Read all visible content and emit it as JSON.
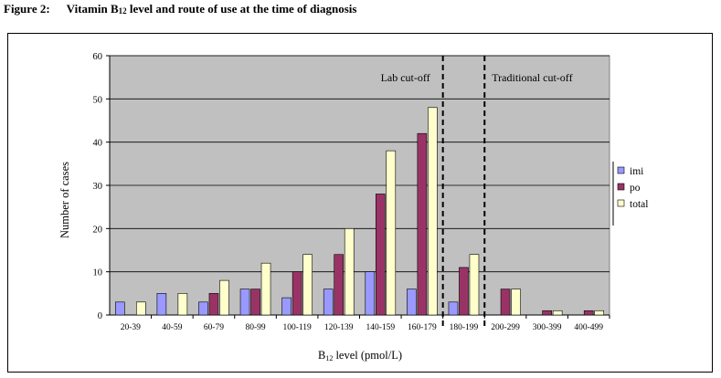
{
  "caption": {
    "label": "Figure 2:",
    "title_main": "Vitamin B",
    "title_sub": "12",
    "title_rest": " level and route of use at the time of diagnosis"
  },
  "chart_data": {
    "type": "bar",
    "categories": [
      "20-39",
      "40-59",
      "60-79",
      "80-99",
      "100-119",
      "120-139",
      "140-159",
      "160-179",
      "180-199",
      "200-299",
      "300-399",
      "400-499"
    ],
    "series": [
      {
        "name": "imi",
        "color": "#9999ff",
        "values": [
          3,
          5,
          3,
          6,
          4,
          6,
          10,
          6,
          3,
          0,
          0,
          0
        ]
      },
      {
        "name": "po",
        "color": "#993366",
        "values": [
          0,
          0,
          5,
          6,
          10,
          14,
          28,
          42,
          11,
          6,
          1,
          1
        ]
      },
      {
        "name": "total",
        "color": "#ffffcc",
        "values": [
          3,
          5,
          8,
          12,
          14,
          20,
          38,
          48,
          14,
          6,
          1,
          1
        ]
      }
    ],
    "ylim": [
      0,
      60
    ],
    "yticks": [
      0,
      10,
      20,
      30,
      40,
      50,
      60
    ],
    "ylabel": "Number of cases",
    "xlabel_main": "B",
    "xlabel_sub": "12",
    "xlabel_rest": " level (pmol/L)",
    "grid": true,
    "plot_background": "#c0c0c0",
    "legend_position": "right",
    "cutoffs": [
      {
        "label": "Lab cut-off",
        "between": [
          7,
          8
        ]
      },
      {
        "label": "Traditional cut-off",
        "between": [
          8,
          9
        ]
      }
    ]
  }
}
